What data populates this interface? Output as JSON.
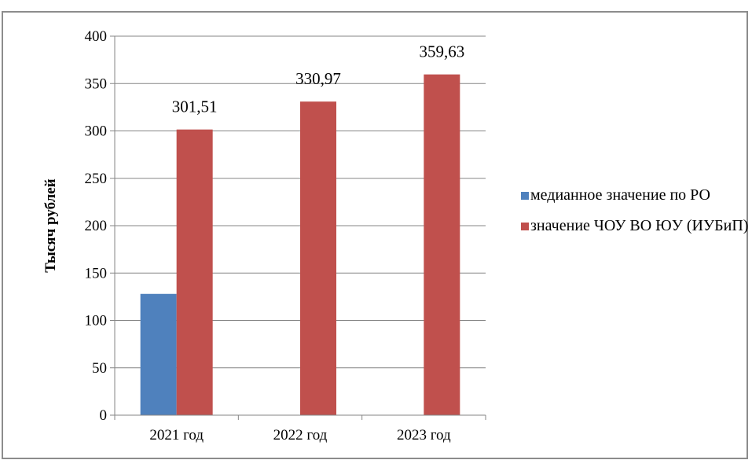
{
  "chart_data": {
    "type": "bar",
    "categories": [
      "2021 год",
      "2022 год",
      "2023 год"
    ],
    "series": [
      {
        "name": "медианное значение по РО",
        "color": "#4f81bd",
        "values": [
          128,
          null,
          null
        ]
      },
      {
        "name": "значение ЧОУ ВО ЮУ (ИУБиП)",
        "color": "#c0504d",
        "values": [
          301.51,
          330.97,
          359.63
        ]
      }
    ],
    "data_labels": [
      "301,51",
      "330,97",
      "359,63"
    ],
    "yticks": [
      "0",
      "50",
      "100",
      "150",
      "200",
      "250",
      "300",
      "350",
      "400"
    ],
    "ylabel": "Тысяч рублей",
    "xlabel": "",
    "ylim": [
      0,
      400
    ],
    "grid": true,
    "legend_position": "right"
  },
  "legend": {
    "item1": "медианное значение по РО",
    "item2": "значение ЧОУ ВО ЮУ (ИУБиП)"
  }
}
